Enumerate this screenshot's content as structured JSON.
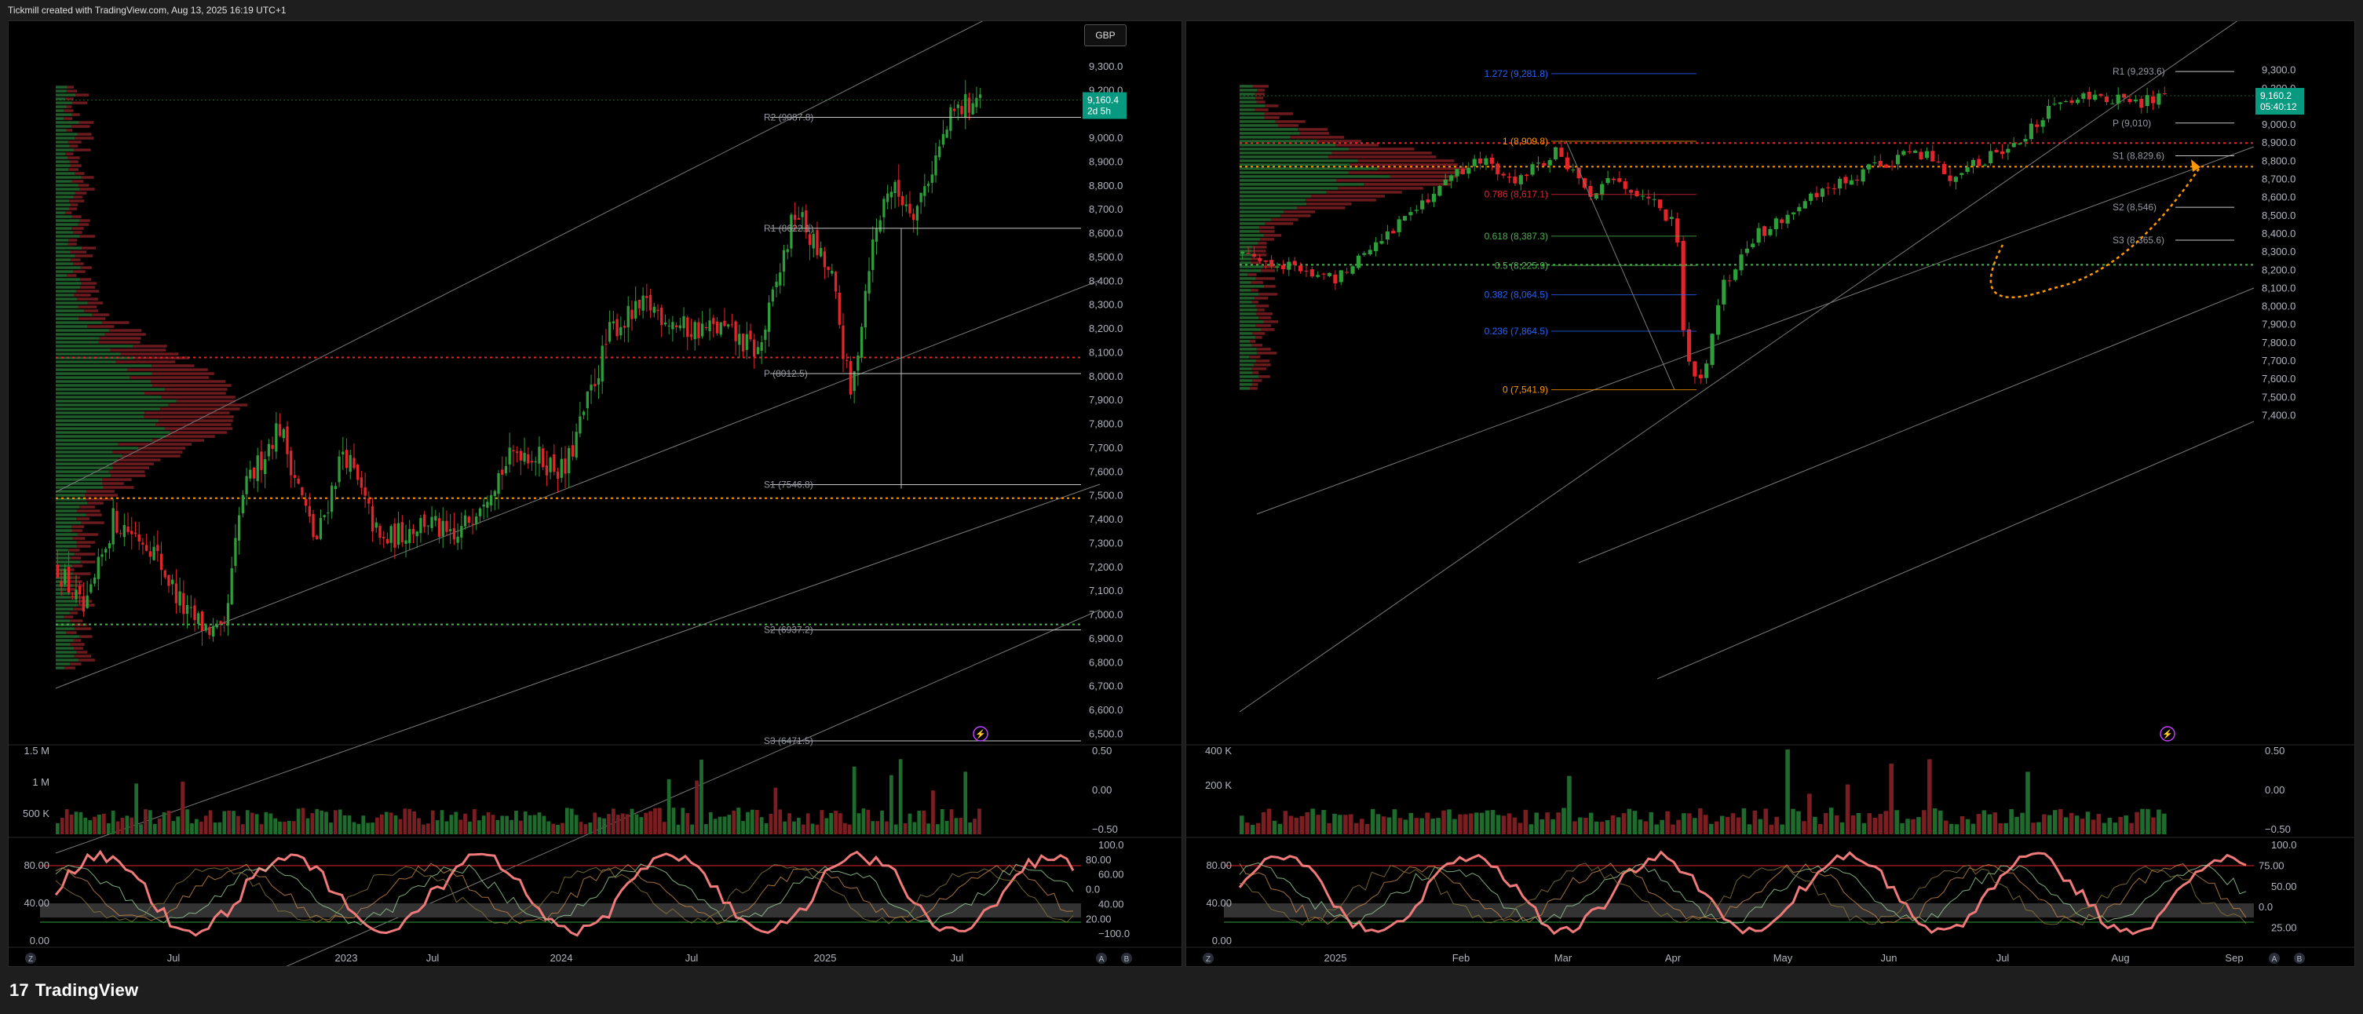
{
  "header": {
    "watermark": "Tickmill created with TradingView.com, Aug 13, 2025 16:19 UTC+1"
  },
  "footer": {
    "brand": "TradingView",
    "brand_mark": "17"
  },
  "colors": {
    "up": "#2e9e3a",
    "down": "#e0262b",
    "background": "#000000",
    "accent_green": "#089981"
  },
  "left": {
    "currency_button": "GBP",
    "price_labels": [
      "9,300.0",
      "9,200.0",
      "9,100.0",
      "9,000.0",
      "8,900.0",
      "8,800.0",
      "8,700.0",
      "8,600.0",
      "8,500.0",
      "8,400.0",
      "8,300.0",
      "8,200.0",
      "8,100.0",
      "8,000.0",
      "7,900.0",
      "7,800.0",
      "7,700.0",
      "7,600.0",
      "7,500.0",
      "7,400.0",
      "7,300.0",
      "7,200.0",
      "7,100.0",
      "7,000.0",
      "6,900.0",
      "6,800.0",
      "6,700.0",
      "6,600.0",
      "6,500.0"
    ],
    "current_price": "9,160.4",
    "countdown": "2d 5h",
    "pivots": [
      {
        "label": "R2 (9087.8)",
        "price": 9087.8
      },
      {
        "label": "R1 (8622.1)",
        "price": 8622.1
      },
      {
        "label": "P (8012.5)",
        "price": 8012.5
      },
      {
        "label": "S1 (7546.8)",
        "price": 7546.8
      },
      {
        "label": "S2 (6937.2)",
        "price": 6937.2
      },
      {
        "label": "S3 (6471.5)",
        "price": 6471.5
      }
    ],
    "volume_labels": [
      "1.5 M",
      "1 M",
      "500 K"
    ],
    "volume_right_labels": [
      "0.50",
      "0.00",
      "−0.50"
    ],
    "osc_labels": [
      "80.00",
      "40.00",
      "0.00"
    ],
    "osc_right_labels": [
      "100.0",
      "80.00",
      "60.00",
      "0.0",
      "40.00",
      "20.00",
      "−100.0"
    ],
    "time_labels": [
      "Jul",
      "2023",
      "Jul",
      "2024",
      "Jul",
      "2025",
      "Jul"
    ],
    "corner_z": "Z",
    "corner_a": "A",
    "corner_b": "B"
  },
  "right": {
    "price_labels": [
      "9,300.0",
      "9,200.0",
      "9,100.0",
      "9,000.0",
      "8,900.0",
      "8,800.0",
      "8,700.0",
      "8,600.0",
      "8,500.0",
      "8,400.0",
      "8,300.0",
      "8,200.0",
      "8,100.0",
      "8,000.0",
      "7,900.0",
      "7,800.0",
      "7,700.0",
      "7,600.0",
      "7,500.0",
      "7,400.0"
    ],
    "current_price": "9,160.2",
    "countdown": "05:40:12",
    "pivots": [
      {
        "label": "R1 (9,293.6)",
        "price": 9293.6
      },
      {
        "label": "P (9,010)",
        "price": 9010
      },
      {
        "label": "S1 (8,829.6)",
        "price": 8829.6
      },
      {
        "label": "S2 (8,546)",
        "price": 8546
      },
      {
        "label": "S3 (8,365.6)",
        "price": 8365.6
      }
    ],
    "fib_levels": [
      {
        "label": "1.272 (9,281.8)",
        "price": 9281.8,
        "color": "#2962ff"
      },
      {
        "label": "1 (8,909.8)",
        "price": 8909.8,
        "color": "#ff9800"
      },
      {
        "label": "0.786 (8,617.1)",
        "price": 8617.1,
        "color": "#e0262b"
      },
      {
        "label": "0.618 (8,387.3)",
        "price": 8387.3,
        "color": "#4caf50"
      },
      {
        "label": "0.5 (8,225.9)",
        "price": 8225.9,
        "color": "#4caf50"
      },
      {
        "label": "0.382 (8,064.5)",
        "price": 8064.5,
        "color": "#2962ff"
      },
      {
        "label": "0.236 (7,864.5)",
        "price": 7864.5,
        "color": "#2962ff"
      },
      {
        "label": "0 (7,541.9)",
        "price": 7541.9,
        "color": "#ff9800"
      }
    ],
    "volume_labels": [
      "400 K",
      "200 K"
    ],
    "volume_right_labels": [
      "0.50",
      "0.00",
      "−0.50"
    ],
    "osc_labels": [
      "80.00",
      "40.00",
      "0.00"
    ],
    "osc_right_labels": [
      "100.0",
      "75.00",
      "50.00",
      "0.0",
      "25.00"
    ],
    "time_labels": [
      "2025",
      "Feb",
      "Mar",
      "Apr",
      "May",
      "Jun",
      "Jul",
      "Aug",
      "Sep"
    ],
    "corner_z": "Z",
    "corner_a": "A",
    "corner_b": "B"
  }
}
